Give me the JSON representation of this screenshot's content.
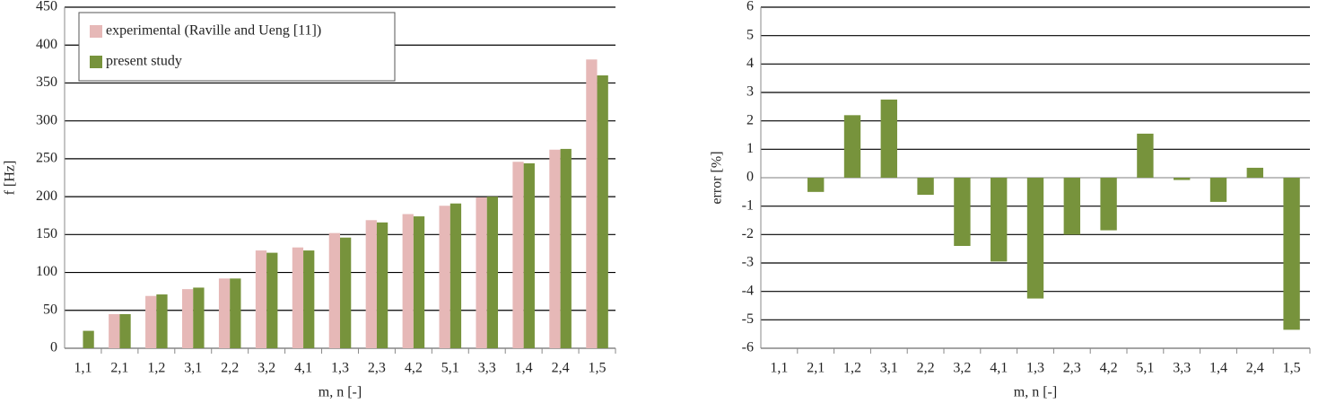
{
  "chart_data": [
    {
      "type": "bar",
      "xlabel": "m, n [-]",
      "ylabel": "f [Hz]",
      "categories": [
        "1,1",
        "2,1",
        "1,2",
        "3,1",
        "2,2",
        "3,2",
        "4,1",
        "1,3",
        "2,3",
        "4,2",
        "5,1",
        "3,3",
        "1,4",
        "2,4",
        "1,5"
      ],
      "series": [
        {
          "name": "experimental (Raville and Ueng [11])",
          "color": "#e6b8b7",
          "values": [
            null,
            45,
            69,
            78,
            92,
            129,
            133,
            152,
            169,
            177,
            188,
            199,
            246,
            262,
            381
          ]
        },
        {
          "name": "present study",
          "color": "#77933c",
          "values": [
            23,
            45,
            71,
            80,
            92,
            126,
            129,
            146,
            166,
            174,
            191,
            200,
            244,
            263,
            360
          ]
        }
      ],
      "ylim": [
        0,
        450
      ],
      "yticks": [
        0,
        50,
        100,
        150,
        200,
        250,
        300,
        350,
        400,
        450
      ],
      "grid": true,
      "legend": "top-left"
    },
    {
      "type": "bar",
      "xlabel": "m, n [-]",
      "ylabel": "error [%]",
      "categories": [
        "1,1",
        "2,1",
        "1,2",
        "3,1",
        "2,2",
        "3,2",
        "4,1",
        "1,3",
        "2,3",
        "4,2",
        "5,1",
        "3,3",
        "1,4",
        "2,4",
        "1,5"
      ],
      "color": "#77933c",
      "values": [
        null,
        -0.5,
        2.2,
        2.75,
        -0.6,
        -2.4,
        -2.95,
        -4.25,
        -2.0,
        -1.85,
        1.55,
        -0.08,
        -0.85,
        0.35,
        -5.35
      ],
      "ylim": [
        -6,
        6
      ],
      "yticks": [
        -6,
        -5,
        -4,
        -3,
        -2,
        -1,
        0,
        1,
        2,
        3,
        4,
        5,
        6
      ],
      "grid": true
    }
  ]
}
